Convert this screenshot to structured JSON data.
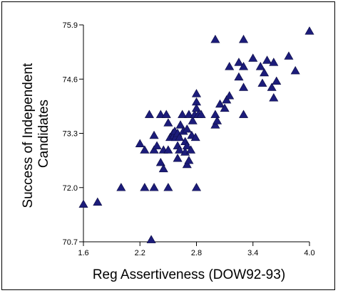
{
  "chart_data": {
    "type": "scatter",
    "title": "",
    "xlabel": "Reg Assertiveness (DOW92-93)",
    "ylabel_lines": [
      "Success of Independent",
      "Candidates"
    ],
    "xlim": [
      1.6,
      4.0
    ],
    "ylim": [
      70.7,
      75.9
    ],
    "x_ticks": [
      "1.6",
      "2.2",
      "2.8",
      "3.4",
      "4.0"
    ],
    "y_ticks": [
      "70.7",
      "72.0",
      "73.3",
      "74.6",
      "75.9"
    ],
    "marker": "triangle",
    "marker_color": "#1c1c7a",
    "points": [
      [
        1.6,
        71.6
      ],
      [
        1.75,
        71.65
      ],
      [
        2.0,
        72.0
      ],
      [
        2.2,
        73.05
      ],
      [
        2.25,
        72.9
      ],
      [
        2.25,
        72.0
      ],
      [
        2.3,
        73.75
      ],
      [
        2.32,
        70.75
      ],
      [
        2.35,
        73.25
      ],
      [
        2.35,
        72.9
      ],
      [
        2.35,
        72.0
      ],
      [
        2.38,
        73.0
      ],
      [
        2.42,
        72.6
      ],
      [
        2.45,
        72.9
      ],
      [
        2.45,
        72.45
      ],
      [
        2.42,
        73.75
      ],
      [
        2.48,
        73.75
      ],
      [
        2.5,
        72.9
      ],
      [
        2.5,
        72.0
      ],
      [
        2.5,
        73.55
      ],
      [
        2.52,
        73.2
      ],
      [
        2.55,
        73.3
      ],
      [
        2.56,
        73.25
      ],
      [
        2.57,
        73.35
      ],
      [
        2.58,
        73.2
      ],
      [
        2.6,
        73.3
      ],
      [
        2.6,
        72.7
      ],
      [
        2.6,
        73.0
      ],
      [
        2.62,
        73.2
      ],
      [
        2.62,
        72.9
      ],
      [
        2.63,
        73.5
      ],
      [
        2.65,
        73.75
      ],
      [
        2.66,
        73.35
      ],
      [
        2.68,
        73.1
      ],
      [
        2.68,
        72.85
      ],
      [
        2.7,
        73.4
      ],
      [
        2.7,
        73.0
      ],
      [
        2.7,
        72.55
      ],
      [
        2.72,
        73.75
      ],
      [
        2.72,
        72.65
      ],
      [
        2.74,
        72.9
      ],
      [
        2.75,
        73.25
      ],
      [
        2.76,
        73.6
      ],
      [
        2.78,
        73.75
      ],
      [
        2.79,
        73.2
      ],
      [
        2.8,
        74.25
      ],
      [
        2.8,
        74.05
      ],
      [
        2.8,
        73.9
      ],
      [
        2.8,
        72.0
      ],
      [
        2.82,
        73.75
      ],
      [
        2.85,
        73.75
      ],
      [
        3.0,
        75.55
      ],
      [
        3.0,
        73.75
      ],
      [
        3.0,
        73.5
      ],
      [
        3.02,
        73.6
      ],
      [
        3.05,
        74.0
      ],
      [
        3.1,
        73.9
      ],
      [
        3.12,
        74.1
      ],
      [
        3.15,
        74.9
      ],
      [
        3.15,
        74.2
      ],
      [
        3.25,
        74.65
      ],
      [
        3.25,
        75.0
      ],
      [
        3.3,
        74.9
      ],
      [
        3.3,
        73.75
      ],
      [
        3.3,
        74.4
      ],
      [
        3.3,
        75.55
      ],
      [
        3.4,
        75.1
      ],
      [
        3.48,
        74.9
      ],
      [
        3.5,
        74.5
      ],
      [
        3.52,
        74.75
      ],
      [
        3.55,
        75.05
      ],
      [
        3.6,
        74.4
      ],
      [
        3.62,
        74.15
      ],
      [
        3.62,
        75.0
      ],
      [
        3.65,
        74.55
      ],
      [
        3.78,
        75.15
      ],
      [
        3.85,
        74.8
      ],
      [
        4.0,
        75.75
      ]
    ]
  }
}
